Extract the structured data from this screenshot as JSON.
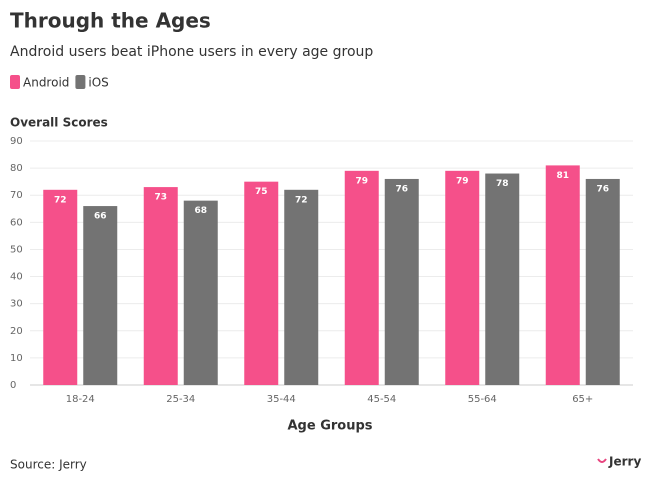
{
  "chart_data": {
    "type": "bar",
    "title": "Through the Ages",
    "subtitle": "Android users beat iPhone users in every age group",
    "y_label": "Overall Scores",
    "x_label": "Age Groups",
    "categories": [
      "18-24",
      "25-34",
      "35-44",
      "45-54",
      "55-64",
      "65+"
    ],
    "series": [
      {
        "name": "Android",
        "color": "#f5508a",
        "values": [
          72,
          73,
          75,
          79,
          79,
          81
        ]
      },
      {
        "name": "iOS",
        "color": "#737373",
        "values": [
          66,
          68,
          72,
          76,
          78,
          76
        ]
      }
    ],
    "ylim": [
      0,
      90
    ],
    "yticks": [
      0,
      10,
      20,
      30,
      40,
      50,
      60,
      70,
      80,
      90
    ],
    "grid": true,
    "legend": "top-left"
  },
  "source": "Source: Jerry",
  "brand": "Jerry"
}
